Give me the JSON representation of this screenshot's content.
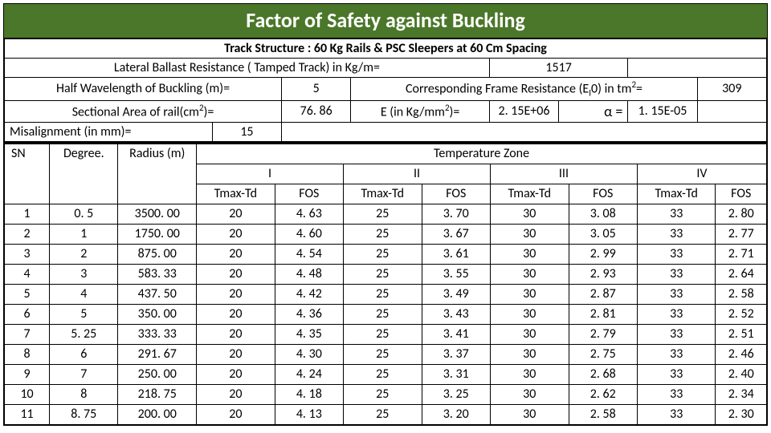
{
  "title": "Factor of Safety against Buckling",
  "info": {
    "track_structure_label": "Track Structure : 60 Kg Rails & PSC Sleepers at 60 Cm Spacing",
    "lbr_label": "Lateral Ballast Resistance ( Tamped Track) in Kg/m=",
    "lbr_value": "1517",
    "hwl_label": "Half Wavelength of Buckling (m)=",
    "hwl_value": "5",
    "cfr_label_pre": "Corresponding Frame Resistance (E",
    "cfr_label_sub": "I",
    "cfr_label_mid": "0) in tm",
    "cfr_label_post": "=",
    "cfr_value": "309",
    "sect_label_pre": "Sectional Area of rail(cm",
    "sect_label_post": ")=",
    "sect_value": "76. 86",
    "e_label_pre": "E (in Kg/mm",
    "e_label_post": ")=",
    "e_value": "2. 15E+06",
    "alpha_label": "α =",
    "alpha_value": "1. 15E-05",
    "mis_label": "Misalignment (in mm)=",
    "mis_value": "15"
  },
  "headers": {
    "sn": "SN",
    "deg": "Degree.",
    "rad": "Radius (m)",
    "tz": "Temperature Zone",
    "z1": "I",
    "z2": "II",
    "z3": "III",
    "z4": "IV",
    "tt": "Tmax-Td",
    "fos": "FOS"
  },
  "rows": [
    {
      "sn": "1",
      "deg": "0. 5",
      "rad": "3500. 00",
      "t1": "20",
      "f1": "4. 63",
      "t2": "25",
      "f2": "3. 70",
      "t3": "30",
      "f3": "3. 08",
      "t4": "33",
      "f4": "2. 80"
    },
    {
      "sn": "2",
      "deg": "1",
      "rad": "1750. 00",
      "t1": "20",
      "f1": "4. 60",
      "t2": "25",
      "f2": "3. 67",
      "t3": "30",
      "f3": "3. 05",
      "t4": "33",
      "f4": "2. 77"
    },
    {
      "sn": "3",
      "deg": "2",
      "rad": "875. 00",
      "t1": "20",
      "f1": "4. 54",
      "t2": "25",
      "f2": "3. 61",
      "t3": "30",
      "f3": "2. 99",
      "t4": "33",
      "f4": "2. 71"
    },
    {
      "sn": "4",
      "deg": "3",
      "rad": "583. 33",
      "t1": "20",
      "f1": "4. 48",
      "t2": "25",
      "f2": "3. 55",
      "t3": "30",
      "f3": "2. 93",
      "t4": "33",
      "f4": "2. 64"
    },
    {
      "sn": "5",
      "deg": "4",
      "rad": "437. 50",
      "t1": "20",
      "f1": "4. 42",
      "t2": "25",
      "f2": "3. 49",
      "t3": "30",
      "f3": "2. 87",
      "t4": "33",
      "f4": "2. 58"
    },
    {
      "sn": "6",
      "deg": "5",
      "rad": "350. 00",
      "t1": "20",
      "f1": "4. 36",
      "t2": "25",
      "f2": "3. 43",
      "t3": "30",
      "f3": "2. 81",
      "t4": "33",
      "f4": "2. 52"
    },
    {
      "sn": "7",
      "deg": "5. 25",
      "rad": "333. 33",
      "t1": "20",
      "f1": "4. 35",
      "t2": "25",
      "f2": "3. 41",
      "t3": "30",
      "f3": "2. 79",
      "t4": "33",
      "f4": "2. 51"
    },
    {
      "sn": "8",
      "deg": "6",
      "rad": "291. 67",
      "t1": "20",
      "f1": "4. 30",
      "t2": "25",
      "f2": "3. 37",
      "t3": "30",
      "f3": "2. 75",
      "t4": "33",
      "f4": "2. 46"
    },
    {
      "sn": "9",
      "deg": "7",
      "rad": "250. 00",
      "t1": "20",
      "f1": "4. 24",
      "t2": "25",
      "f2": "3. 31",
      "t3": "30",
      "f3": "2. 68",
      "t4": "33",
      "f4": "2. 40"
    },
    {
      "sn": "10",
      "deg": "8",
      "rad": "218. 75",
      "t1": "20",
      "f1": "4. 18",
      "t2": "25",
      "f2": "3. 25",
      "t3": "30",
      "f3": "2. 62",
      "t4": "33",
      "f4": "2. 34"
    },
    {
      "sn": "11",
      "deg": "8. 75",
      "rad": "200. 00",
      "t1": "20",
      "f1": "4. 13",
      "t2": "25",
      "f2": "3. 20",
      "t3": "30",
      "f3": "2. 58",
      "t4": "33",
      "f4": "2. 30"
    }
  ]
}
